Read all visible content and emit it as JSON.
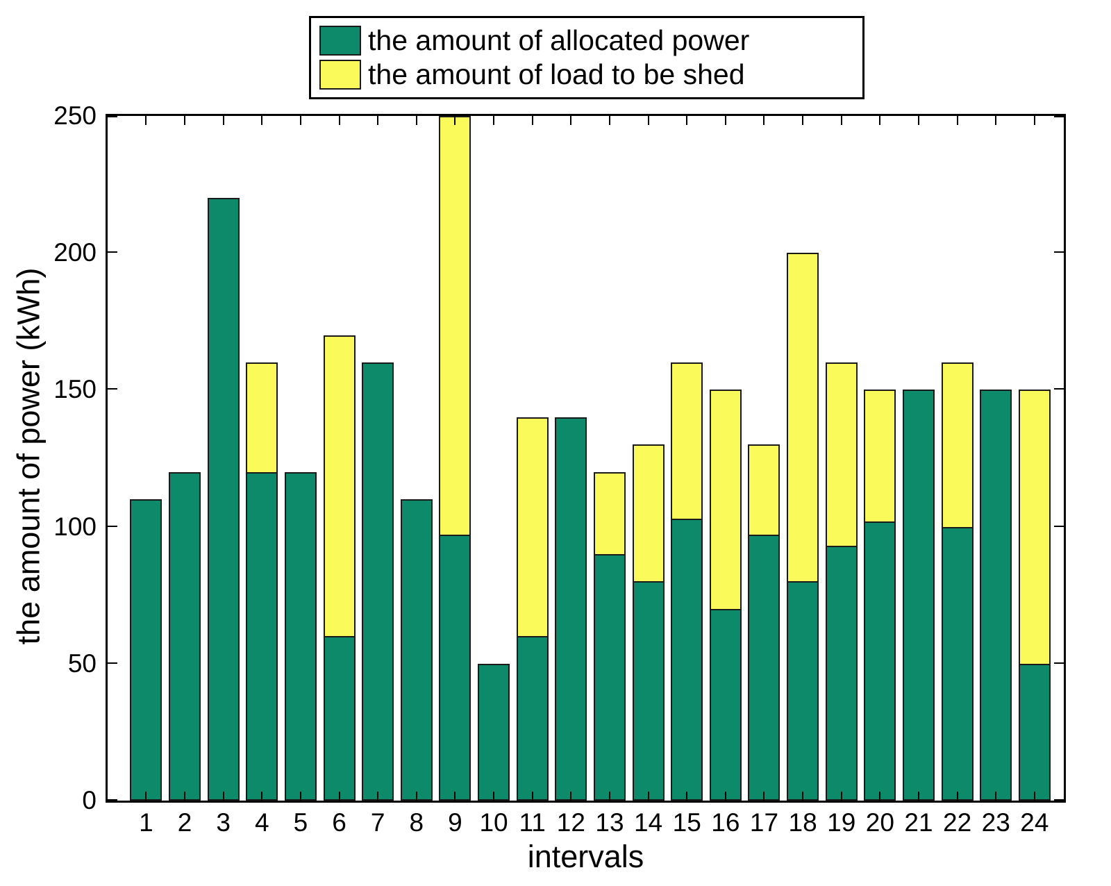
{
  "chart_data": {
    "type": "bar",
    "stacked": true,
    "title": "",
    "xlabel": "intervals",
    "ylabel": "the amount of power (kWh)",
    "ylim": [
      0,
      250
    ],
    "yticks": [
      0,
      50,
      100,
      150,
      200,
      250
    ],
    "grid": false,
    "legend_position": "top-center",
    "categories": [
      "1",
      "2",
      "3",
      "4",
      "5",
      "6",
      "7",
      "8",
      "9",
      "10",
      "11",
      "12",
      "13",
      "14",
      "15",
      "16",
      "17",
      "18",
      "19",
      "20",
      "21",
      "22",
      "23",
      "24"
    ],
    "series": [
      {
        "name": "the amount of allocated power",
        "color": "#0d8a6a",
        "values": [
          110,
          120,
          220,
          120,
          120,
          60,
          160,
          110,
          97,
          50,
          60,
          140,
          90,
          80,
          103,
          70,
          97,
          80,
          93,
          102,
          150,
          100,
          150,
          50
        ]
      },
      {
        "name": "the amount of load to be shed",
        "color": "#fafa5a",
        "values": [
          0,
          0,
          0,
          40,
          0,
          110,
          0,
          0,
          153,
          0,
          80,
          0,
          30,
          50,
          57,
          80,
          33,
          120,
          67,
          48,
          0,
          60,
          0,
          100
        ]
      }
    ]
  }
}
